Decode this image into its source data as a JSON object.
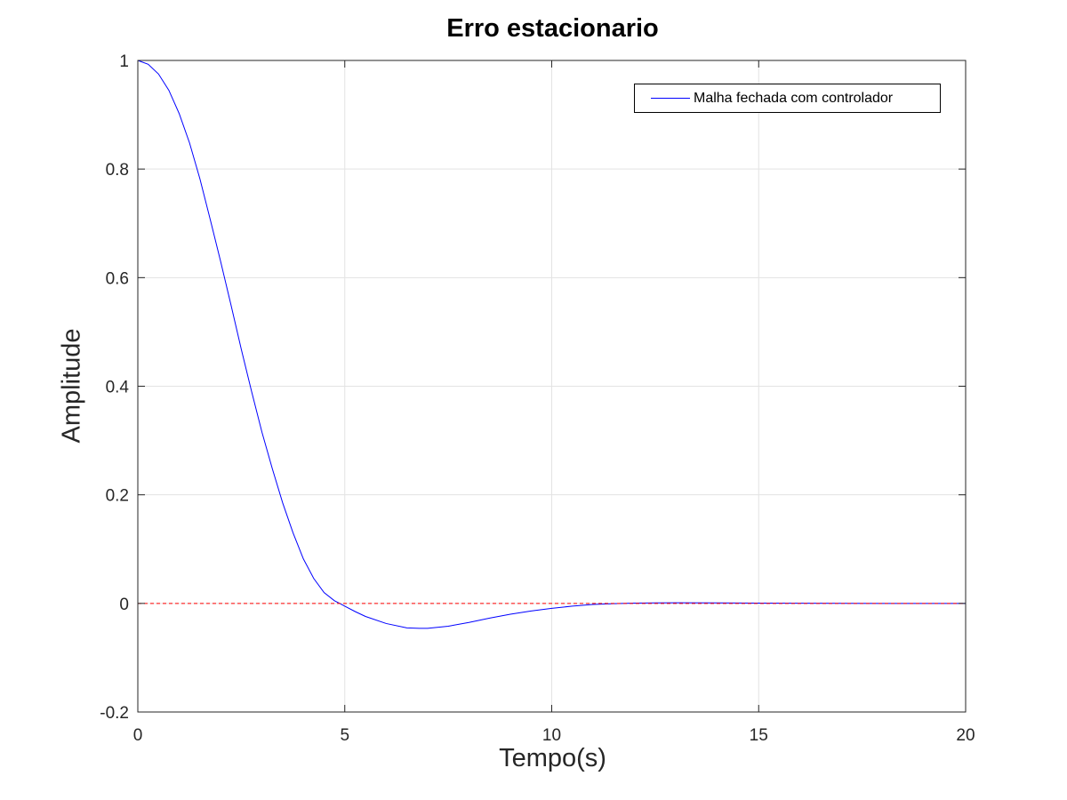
{
  "chart_data": {
    "type": "line",
    "title": "Erro estacionario",
    "xlabel": "Tempo(s)",
    "ylabel": "Amplitude",
    "xlim": [
      0,
      20
    ],
    "ylim": [
      -0.2,
      1
    ],
    "xticks": [
      0,
      5,
      10,
      15,
      20
    ],
    "yticks": [
      -0.2,
      0,
      0.2,
      0.4,
      0.6,
      0.8,
      1
    ],
    "xtick_labels": [
      "0",
      "5",
      "10",
      "15",
      "20"
    ],
    "ytick_labels": [
      "-0.2",
      "0",
      "0.2",
      "0.4",
      "0.6",
      "0.8",
      "1"
    ],
    "grid": true,
    "legend_position": "top-right",
    "series": [
      {
        "name": "Malha fechada com controlador",
        "color": "#0000ff",
        "style": "solid",
        "x": [
          0,
          0.25,
          0.5,
          0.75,
          1,
          1.25,
          1.5,
          1.75,
          2,
          2.25,
          2.5,
          2.75,
          3,
          3.25,
          3.5,
          3.75,
          4,
          4.25,
          4.5,
          4.75,
          5,
          5.25,
          5.5,
          6,
          6.5,
          6.8,
          7,
          7.5,
          8,
          8.5,
          9,
          9.5,
          10,
          10.5,
          11,
          11.5,
          12,
          12.5,
          13,
          14,
          15,
          16,
          17,
          18,
          19,
          20
        ],
        "y": [
          1.0,
          0.993,
          0.975,
          0.945,
          0.902,
          0.848,
          0.782,
          0.707,
          0.63,
          0.55,
          0.468,
          0.39,
          0.315,
          0.248,
          0.185,
          0.13,
          0.082,
          0.046,
          0.02,
          0.005,
          -0.005,
          -0.015,
          -0.024,
          -0.037,
          -0.045,
          -0.046,
          -0.046,
          -0.042,
          -0.035,
          -0.027,
          -0.02,
          -0.014,
          -0.009,
          -0.005,
          -0.002,
          -0.0005,
          0.0005,
          0.001,
          0.0012,
          0.001,
          0.0006,
          0.0003,
          0.0001,
          0,
          0,
          0
        ]
      },
      {
        "color": "#ff0000",
        "style": "dashed",
        "x": [
          0,
          20
        ],
        "y": [
          0,
          0
        ]
      }
    ]
  }
}
